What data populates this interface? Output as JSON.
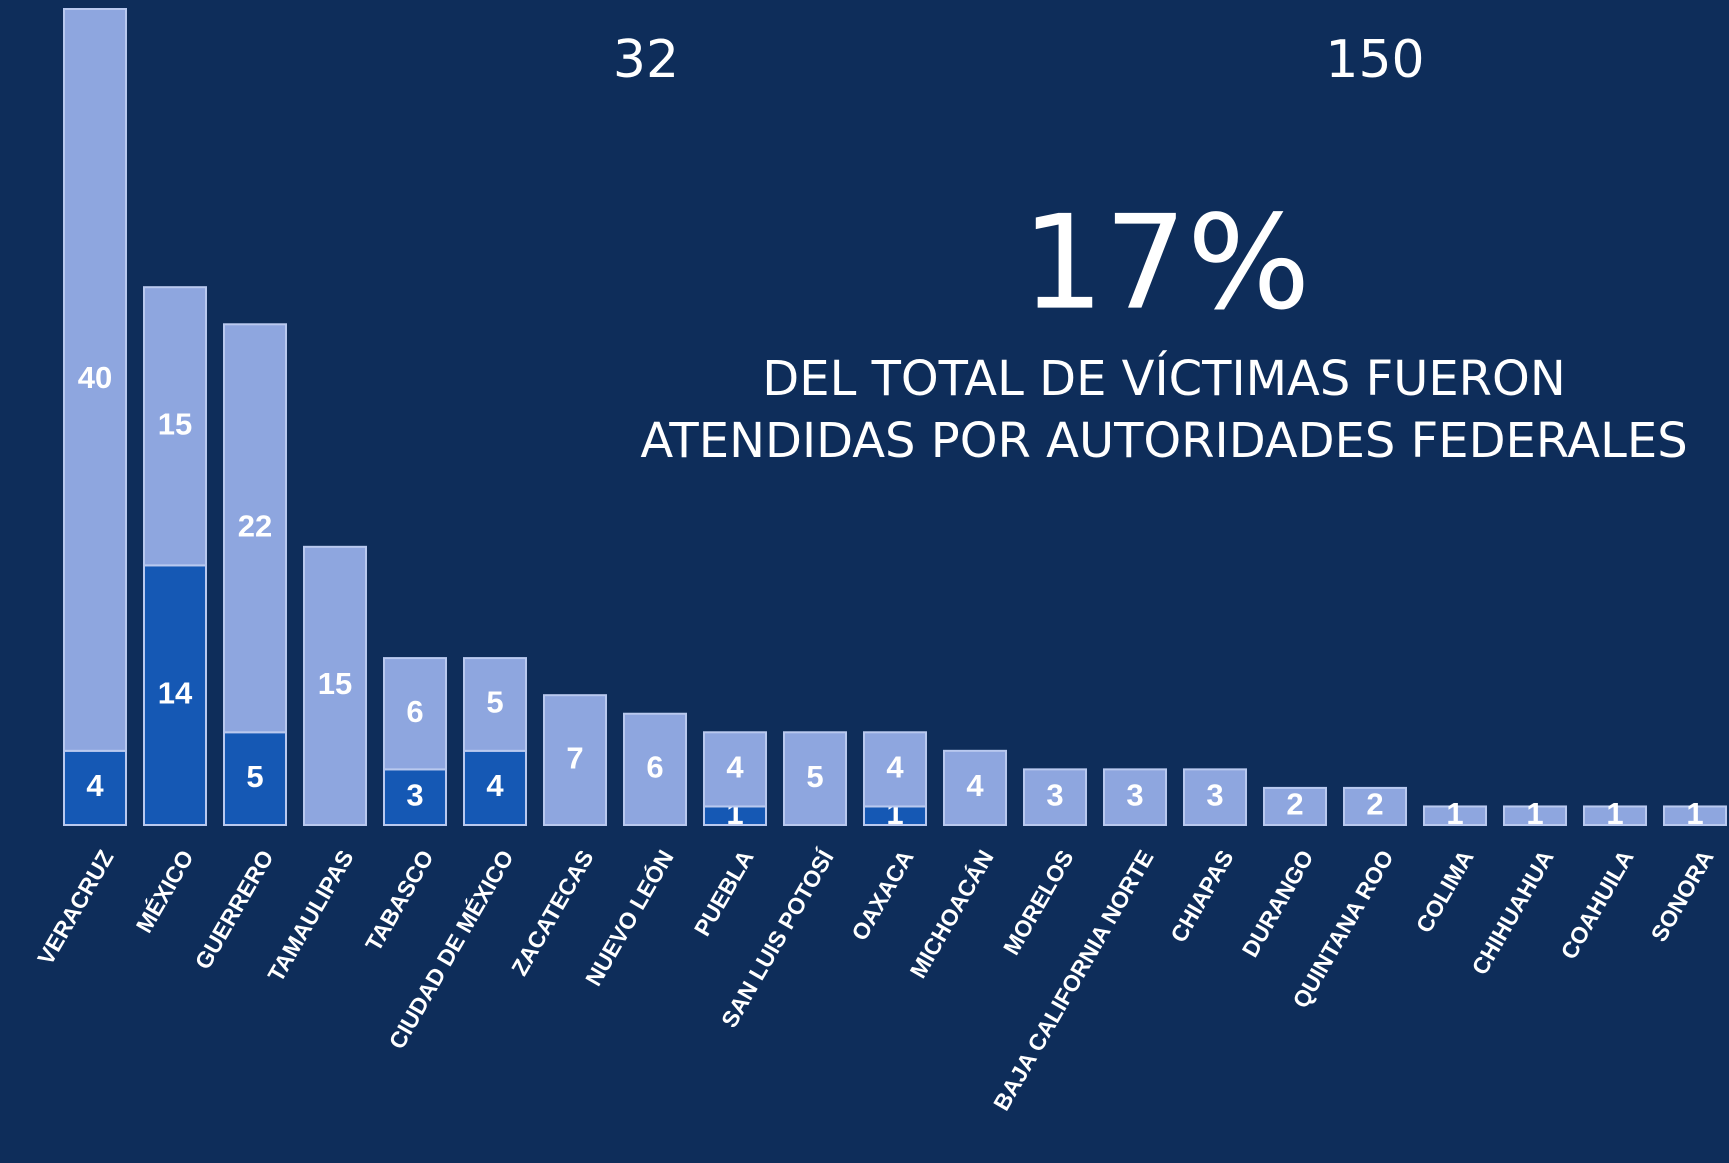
{
  "chart_data": {
    "type": "stacked_bar",
    "annotations": [
      "32",
      "150",
      "17%",
      "DEL TOTAL DE VÍCTIMAS FUERON",
      "ATENDIDAS POR AUTORIDADES FEDERALES"
    ],
    "categories": [
      "VERACRUZ",
      "MÉXICO",
      "GUERRERO",
      "TAMAULIPAS",
      "TABASCO",
      "CIUDAD DE MÉXICO",
      "ZACATECAS",
      "NUEVO LEÓN",
      "PUEBLA",
      "SAN LUIS POTOSÍ",
      "OAXACA",
      "MICHOACÁN",
      "MORELOS",
      "BAJA CALIFORNIA NORTE",
      "CHIAPAS",
      "DURANGO",
      "QUINTANA ROO",
      "COLIMA",
      "CHIHUAHUA",
      "COAHUILA",
      "SONORA"
    ],
    "series": [
      {
        "color": "#1558b4",
        "values": [
          4,
          14,
          5,
          null,
          3,
          4,
          null,
          null,
          1,
          null,
          1,
          null,
          null,
          null,
          null,
          null,
          null,
          null,
          null,
          null,
          null
        ]
      },
      {
        "color": "#8ea6df",
        "values": [
          40,
          15,
          22,
          15,
          6,
          5,
          7,
          6,
          4,
          5,
          4,
          4,
          3,
          3,
          3,
          2,
          2,
          1,
          1,
          1,
          1
        ]
      }
    ]
  }
}
